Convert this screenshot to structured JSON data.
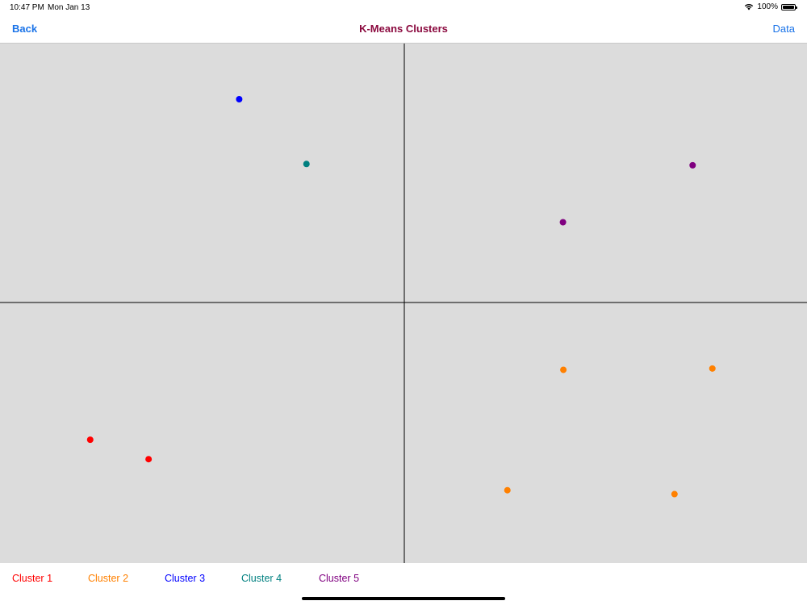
{
  "status_bar": {
    "time": "10:47 PM",
    "date": "Mon Jan 13",
    "battery": "100%"
  },
  "nav": {
    "back_label": "Back",
    "title": "K-Means Clusters",
    "right_label": "Data"
  },
  "colors": {
    "link": "#1a73e8",
    "title": "#8b0a3f",
    "plot_background": "#dcdcdc",
    "axis": "#000000"
  },
  "chart_data": {
    "type": "scatter",
    "xlim": [
      -1,
      1
    ],
    "ylim": [
      -1,
      1
    ],
    "axes": "centered",
    "grid": false,
    "legend": "bottom",
    "series": [
      {
        "name": "Cluster 1",
        "color": "#ff0000",
        "points": [
          [
            -0.78,
            -0.53
          ],
          [
            -0.635,
            -0.605
          ]
        ]
      },
      {
        "name": "Cluster 2",
        "color": "#ff8000",
        "points": [
          [
            0.395,
            -0.26
          ],
          [
            0.765,
            -0.255
          ],
          [
            0.256,
            -0.725
          ],
          [
            0.671,
            -0.74
          ]
        ]
      },
      {
        "name": "Cluster 3",
        "color": "#0000ff",
        "points": [
          [
            -0.41,
            0.785
          ]
        ]
      },
      {
        "name": "Cluster 4",
        "color": "#008080",
        "points": [
          [
            -0.243,
            0.535
          ]
        ]
      },
      {
        "name": "Cluster 5",
        "color": "#800080",
        "points": [
          [
            0.394,
            0.31
          ],
          [
            0.716,
            0.53
          ]
        ]
      }
    ]
  }
}
